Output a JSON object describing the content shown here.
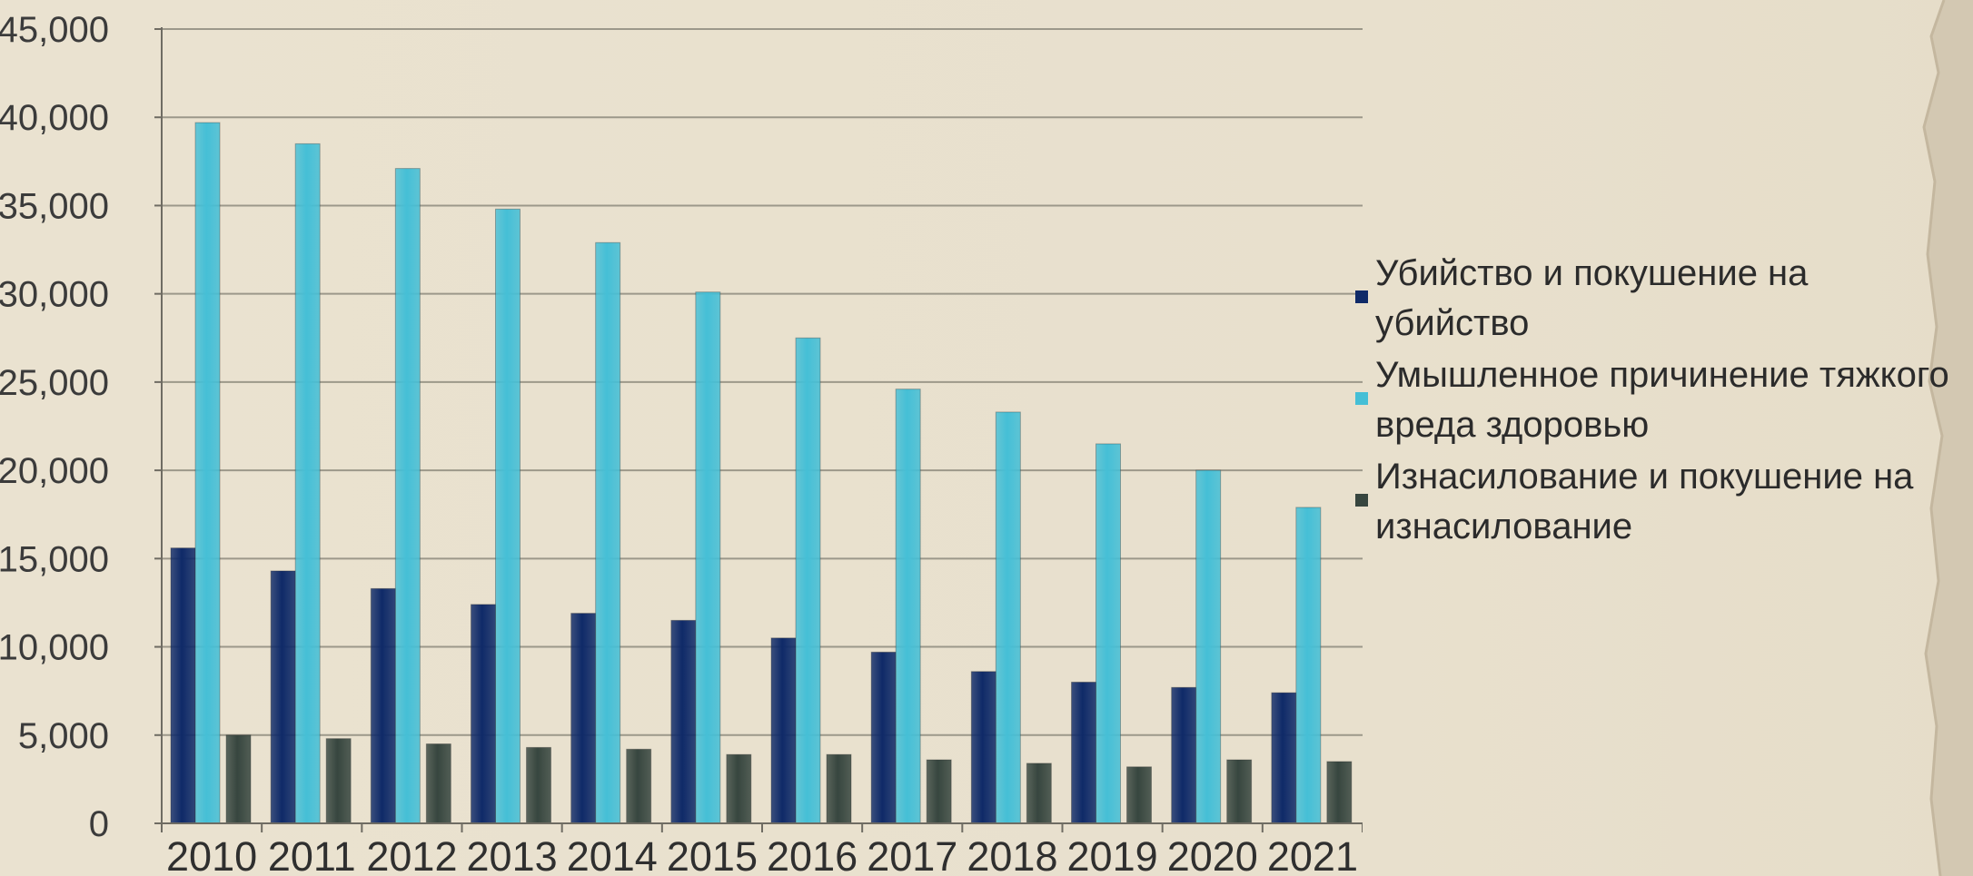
{
  "chart_data": {
    "type": "bar",
    "categories": [
      "2010",
      "2011",
      "2012",
      "2013",
      "2014",
      "2015",
      "2016",
      "2017",
      "2018",
      "2019",
      "2020",
      "2021"
    ],
    "series": [
      {
        "name": "Убийство и покушение на убийство",
        "color": "#0f2a68",
        "values": [
          15600,
          14300,
          13300,
          12400,
          11900,
          11500,
          10500,
          9700,
          8600,
          8000,
          7700,
          7400
        ]
      },
      {
        "name": "Умышленное причинение тяжкого вреда здоровью",
        "color": "#45bfd6",
        "values": [
          39700,
          38500,
          37100,
          34800,
          32900,
          30100,
          27500,
          24600,
          23300,
          21500,
          20000,
          17900
        ]
      },
      {
        "name": "Изнасилование и покушение на изнасилование",
        "color": "#37463f",
        "values": [
          5000,
          4800,
          4500,
          4300,
          4200,
          3900,
          3900,
          3600,
          3400,
          3200,
          3600,
          3500
        ]
      }
    ],
    "y_ticks": [
      "0",
      "5,000",
      "10,000",
      "15,000",
      "20,000",
      "25,000",
      "30,000",
      "35,000",
      "40,000",
      "45,000"
    ],
    "ylim": [
      0,
      45000
    ],
    "title": "",
    "xlabel": "",
    "ylabel": "",
    "grid": true,
    "legend_position": "right"
  }
}
